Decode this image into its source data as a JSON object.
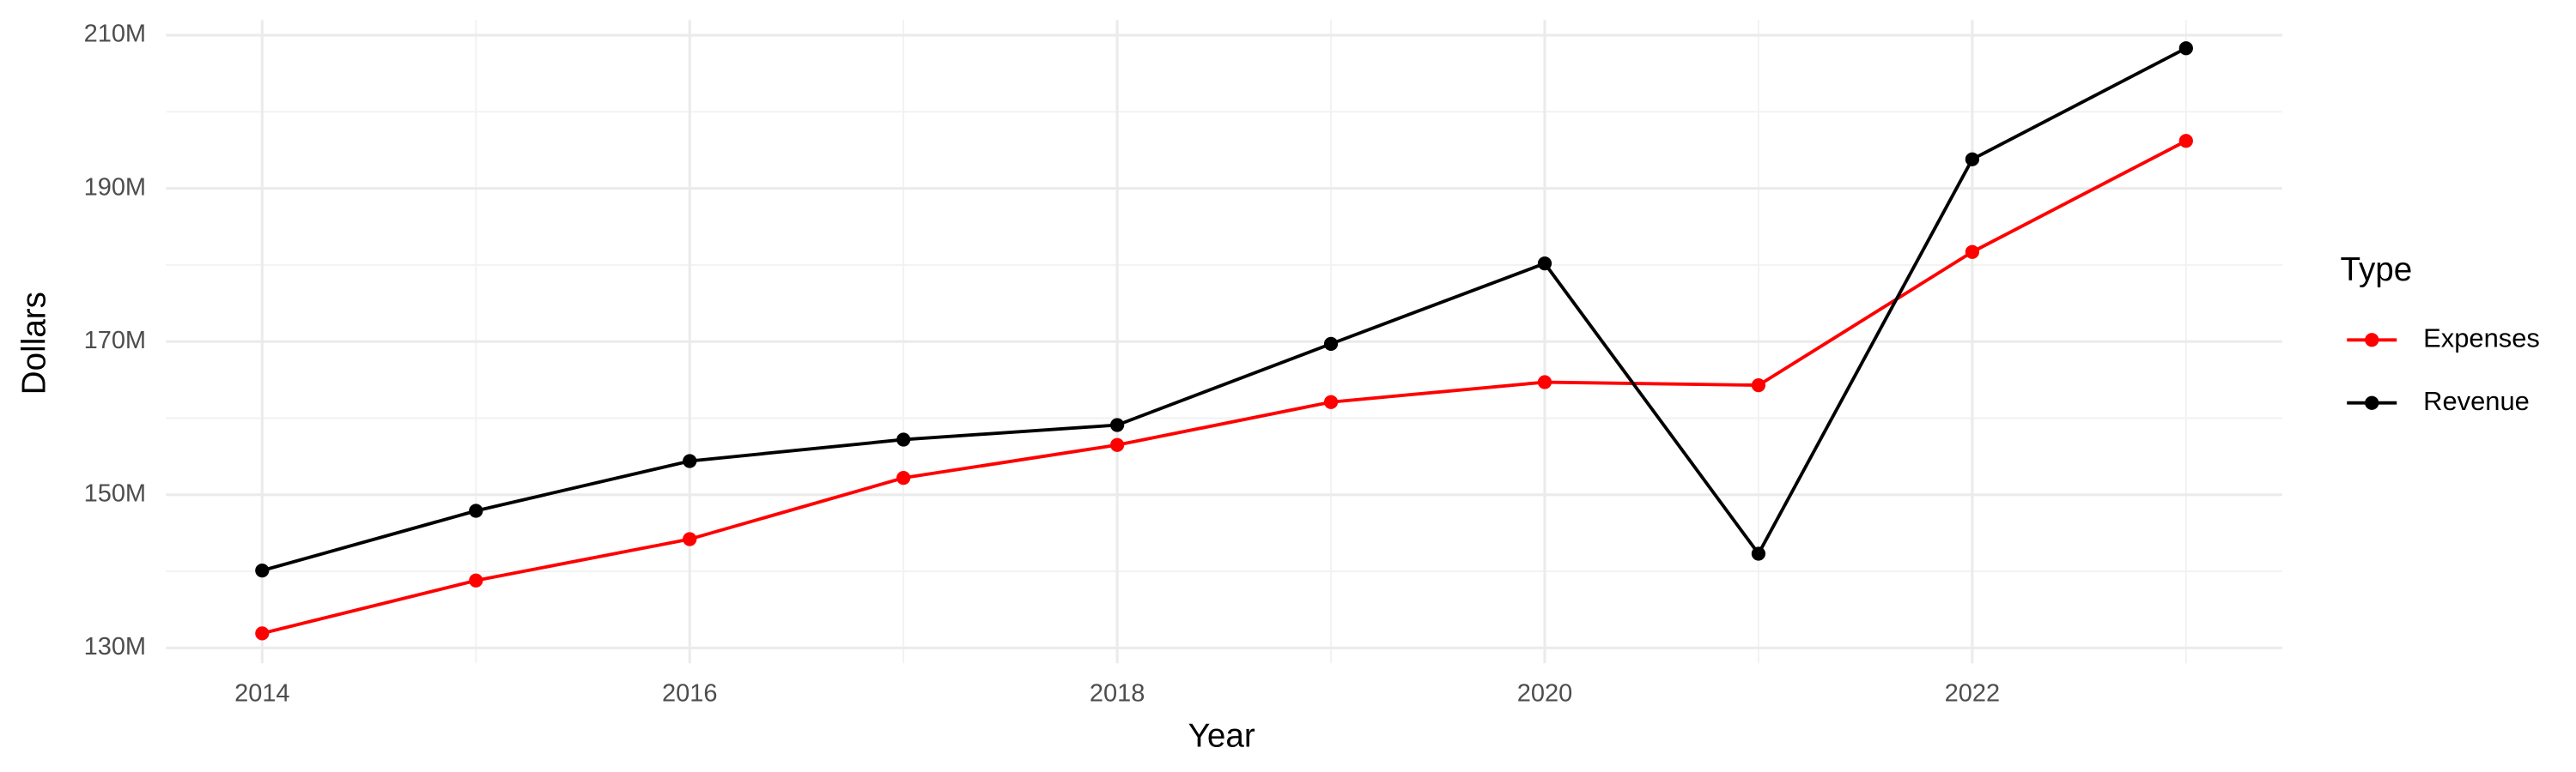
{
  "chart_data": {
    "type": "line",
    "x_label": "Year",
    "y_label": "Dollars",
    "legend_title": "Type",
    "x": [
      2014,
      2015,
      2016,
      2017,
      2018,
      2019,
      2020,
      2021,
      2022,
      2023
    ],
    "series": [
      {
        "name": "Expenses",
        "color": "#ff0000",
        "values": [
          131900000,
          138800000,
          144200000,
          152200000,
          156500000,
          162100000,
          164700000,
          164300000,
          181700000,
          196200000
        ]
      },
      {
        "name": "Revenue",
        "color": "#000000",
        "values": [
          140100000,
          147900000,
          154400000,
          157200000,
          159100000,
          169700000,
          180200000,
          142300000,
          193800000,
          208300000
        ]
      }
    ],
    "xlim": [
      2013.55,
      2023.45
    ],
    "xticks": [
      2014,
      2016,
      2018,
      2020,
      2022
    ],
    "ylim": [
      128000000,
      212000000
    ],
    "yticks": [
      {
        "value": 130000000,
        "label": "130M"
      },
      {
        "value": 150000000,
        "label": "150M"
      },
      {
        "value": 170000000,
        "label": "170M"
      },
      {
        "value": 190000000,
        "label": "190M"
      },
      {
        "value": 210000000,
        "label": "210M"
      }
    ],
    "grid": true,
    "legend": "right"
  }
}
